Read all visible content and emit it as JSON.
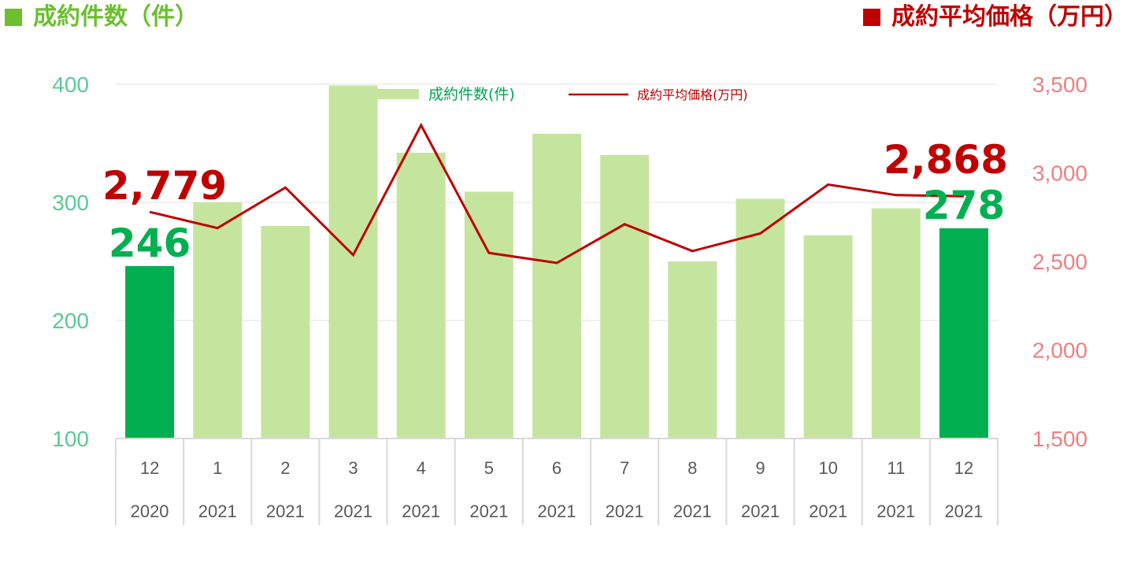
{
  "header": {
    "left_title": "成約件数（件）",
    "right_title": "成約平均価格（万円）"
  },
  "colors": {
    "bar": "#c5e59f",
    "bar_highlight": "#00b050",
    "line": "#c00000",
    "left_axis": "#5ac994",
    "right_axis": "#f07f7f"
  },
  "chart_data": {
    "type": "bar",
    "categories": [
      {
        "month": "12",
        "year": "2020"
      },
      {
        "month": "1",
        "year": "2021"
      },
      {
        "month": "2",
        "year": "2021"
      },
      {
        "month": "3",
        "year": "2021"
      },
      {
        "month": "4",
        "year": "2021"
      },
      {
        "month": "5",
        "year": "2021"
      },
      {
        "month": "6",
        "year": "2021"
      },
      {
        "month": "7",
        "year": "2021"
      },
      {
        "month": "8",
        "year": "2021"
      },
      {
        "month": "9",
        "year": "2021"
      },
      {
        "month": "10",
        "year": "2021"
      },
      {
        "month": "11",
        "year": "2021"
      },
      {
        "month": "12",
        "year": "2021"
      }
    ],
    "series": [
      {
        "name": "成約件数(件)",
        "type": "bar",
        "axis": "left",
        "values": [
          246,
          300,
          280,
          399,
          342,
          309,
          358,
          340,
          250,
          303,
          272,
          295,
          278
        ],
        "highlight": [
          true,
          false,
          false,
          false,
          false,
          false,
          false,
          false,
          false,
          false,
          false,
          false,
          true
        ]
      },
      {
        "name": "成約平均価格(万円)",
        "type": "line",
        "axis": "right",
        "values": [
          2779,
          2688,
          2917,
          2536,
          3269,
          2548,
          2491,
          2710,
          2558,
          2658,
          2934,
          2874,
          2868
        ]
      }
    ],
    "y_left": {
      "min": 100,
      "max": 400,
      "ticks": [
        "100",
        "200",
        "300",
        "400"
      ]
    },
    "y_right": {
      "min": 1500,
      "max": 3500,
      "ticks": [
        "1,500",
        "2,000",
        "2,500",
        "3,000",
        "3,500"
      ]
    },
    "data_labels": {
      "first_line": "2,779",
      "last_line": "2,868",
      "first_bar": "246",
      "last_bar": "278"
    },
    "legend": {
      "position": "top-center"
    },
    "grid": true
  }
}
